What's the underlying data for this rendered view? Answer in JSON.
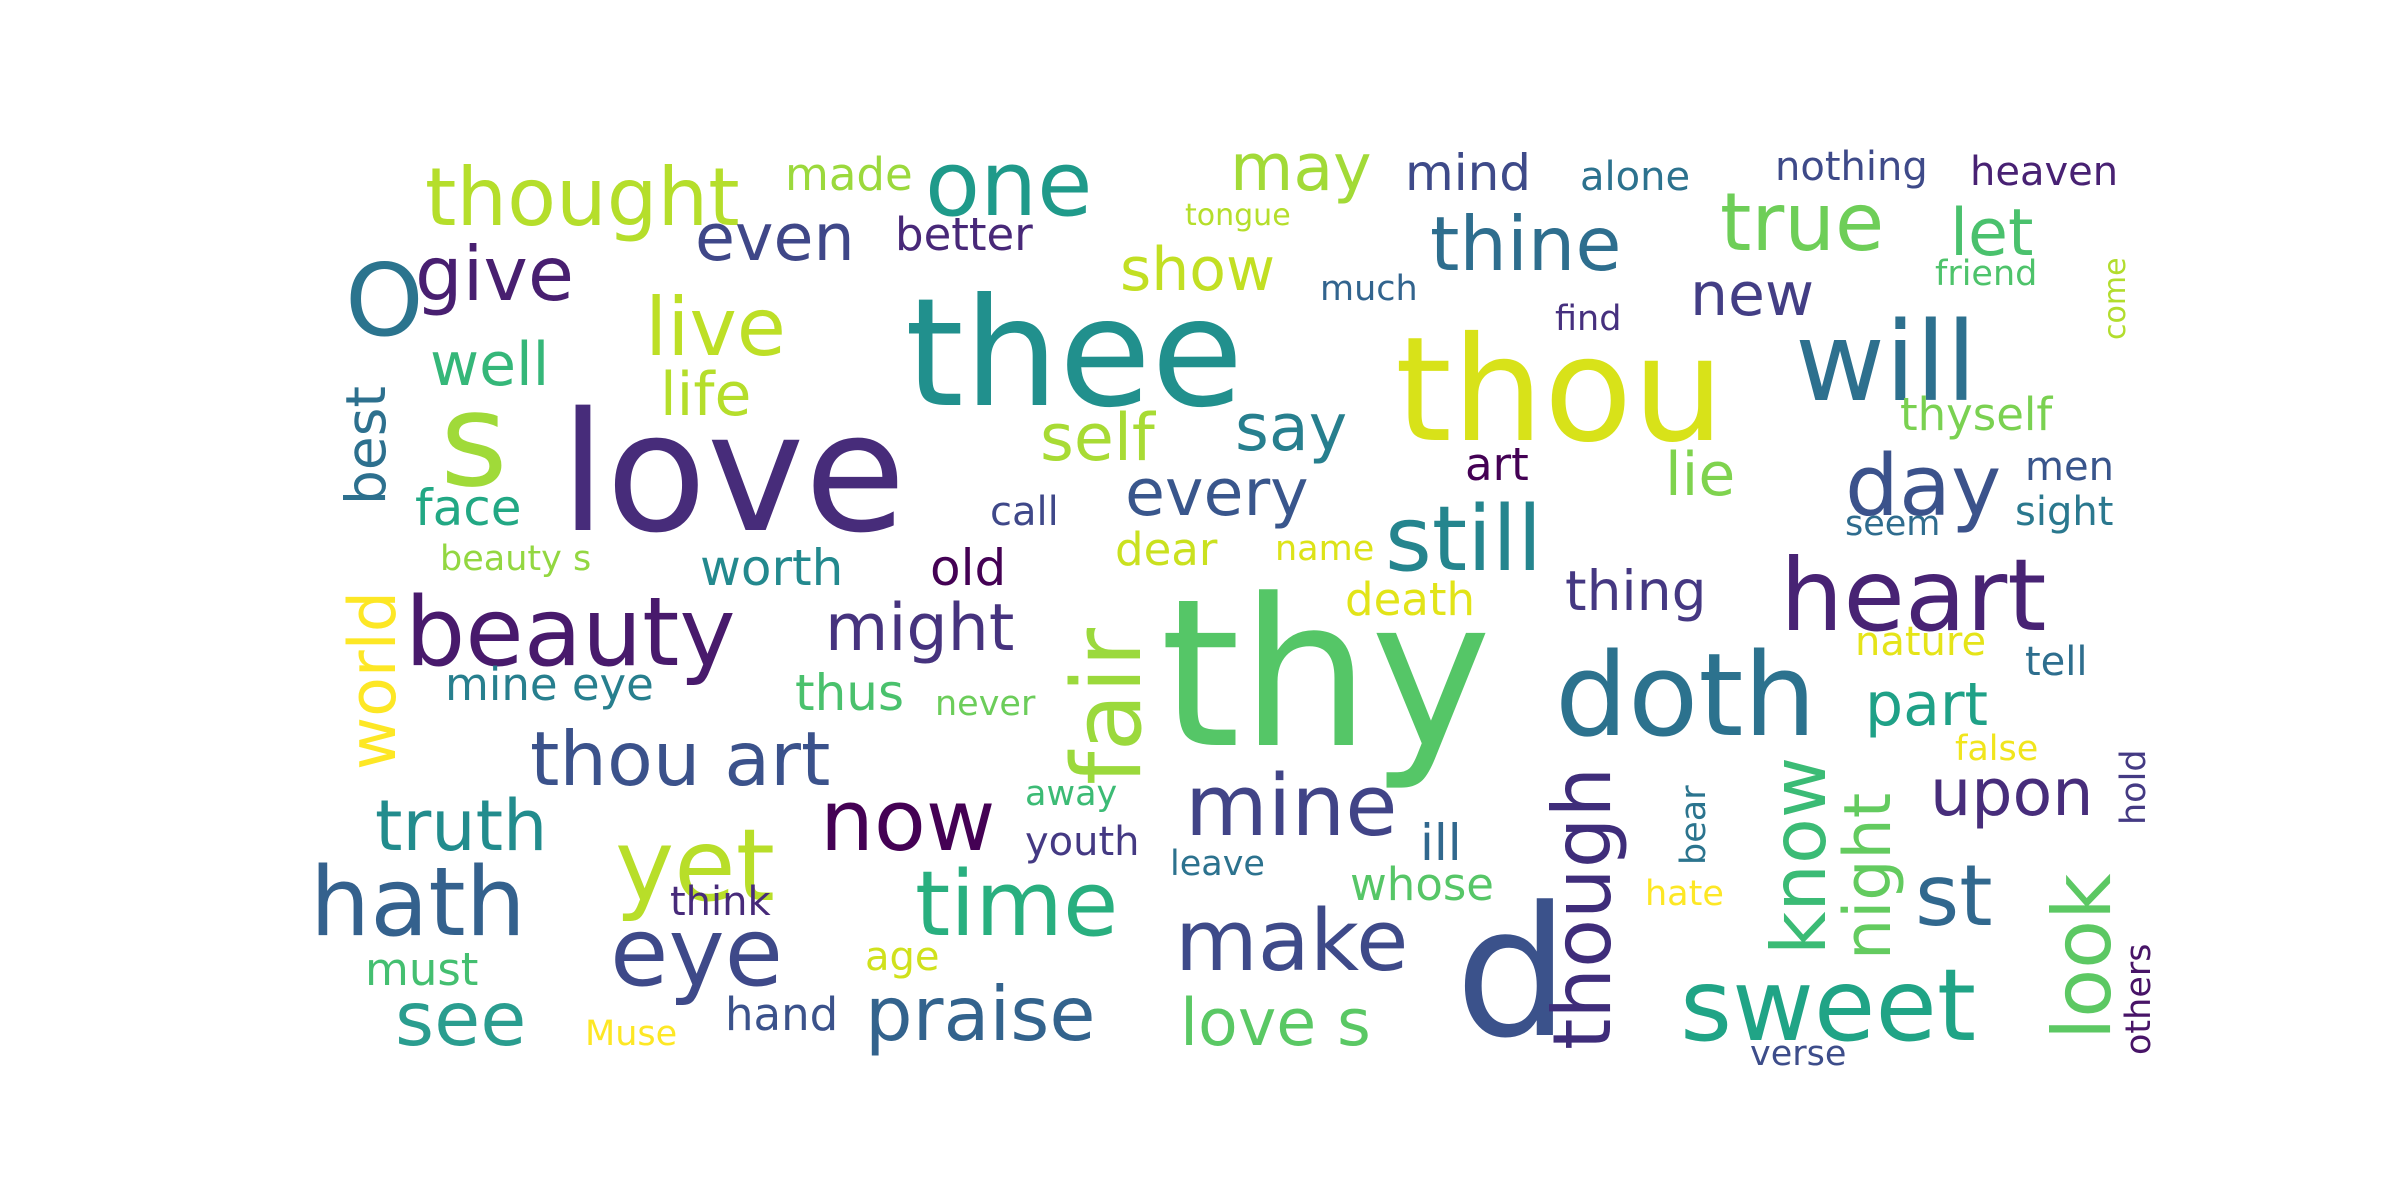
{
  "words": [
    {
      "text": "thy",
      "color": "#55c667"
    },
    {
      "text": "love",
      "color": "#472c7a"
    },
    {
      "text": "thee",
      "color": "#21908d"
    },
    {
      "text": "thou",
      "color": "#d8e219"
    },
    {
      "text": "d",
      "color": "#3b528b"
    },
    {
      "text": "will",
      "color": "#2d708e"
    },
    {
      "text": "s",
      "color": "#a0da39"
    },
    {
      "text": "doth",
      "color": "#2c728e"
    },
    {
      "text": "heart",
      "color": "#482374"
    },
    {
      "text": "beauty",
      "color": "#481a6c"
    },
    {
      "text": "sweet",
      "color": "#20a486"
    },
    {
      "text": "O",
      "color": "#2b748e"
    },
    {
      "text": "eye",
      "color": "#3e4989"
    },
    {
      "text": "time",
      "color": "#29af7f"
    },
    {
      "text": "yet",
      "color": "#b8de29"
    },
    {
      "text": "hath",
      "color": "#34618d"
    },
    {
      "text": "mine",
      "color": "#414487"
    },
    {
      "text": "now",
      "color": "#440154"
    },
    {
      "text": "make",
      "color": "#3e4a89"
    },
    {
      "text": "praise",
      "color": "#33638d"
    },
    {
      "text": "still",
      "color": "#25858e"
    },
    {
      "text": "day",
      "color": "#3b528b"
    },
    {
      "text": "one",
      "color": "#1f9a8a"
    },
    {
      "text": "thought",
      "color": "#b5de2b"
    },
    {
      "text": "thine",
      "color": "#2e6e8e"
    },
    {
      "text": "true",
      "color": "#6ece58"
    },
    {
      "text": "fair",
      "color": "#9bd93c"
    },
    {
      "text": "though",
      "color": "#3f2d7a"
    },
    {
      "text": "thou art",
      "color": "#3b528b"
    },
    {
      "text": "st",
      "color": "#31688e"
    },
    {
      "text": "look",
      "color": "#5cc863"
    },
    {
      "text": "give",
      "color": "#481f70"
    },
    {
      "text": "know",
      "color": "#3bbb75"
    },
    {
      "text": "see",
      "color": "#2a9d8f"
    },
    {
      "text": "might",
      "color": "#46337e"
    },
    {
      "text": "live",
      "color": "#bddf26"
    },
    {
      "text": "truth",
      "color": "#228c8d"
    },
    {
      "text": "night",
      "color": "#63cb5f"
    },
    {
      "text": "upon",
      "color": "#472d7b"
    },
    {
      "text": "every",
      "color": "#39568c"
    },
    {
      "text": "love s",
      "color": "#5ac864"
    },
    {
      "text": "self",
      "color": "#a8db34"
    },
    {
      "text": "say",
      "color": "#277f8e"
    },
    {
      "text": "may",
      "color": "#a2da37"
    },
    {
      "text": "part",
      "color": "#1fa187"
    },
    {
      "text": "let",
      "color": "#4ac16d"
    },
    {
      "text": "world",
      "color": "#fde725"
    },
    {
      "text": "even",
      "color": "#3f4788"
    },
    {
      "text": "well",
      "color": "#35b779"
    },
    {
      "text": "show",
      "color": "#c2df23"
    },
    {
      "text": "new",
      "color": "#433e85"
    },
    {
      "text": "life",
      "color": "#b5de2b"
    },
    {
      "text": "thing",
      "color": "#453882"
    },
    {
      "text": "best",
      "color": "#2d708e"
    },
    {
      "text": "lie",
      "color": "#7fd34e"
    },
    {
      "text": "mind",
      "color": "#3e4a89"
    },
    {
      "text": "worth",
      "color": "#23898e"
    },
    {
      "text": "death",
      "color": "#e2e418"
    },
    {
      "text": "better",
      "color": "#482878"
    },
    {
      "text": "mine eye",
      "color": "#277f8e"
    },
    {
      "text": "face",
      "color": "#22a884"
    },
    {
      "text": "thus",
      "color": "#4ac16d"
    },
    {
      "text": "old",
      "color": "#440154"
    },
    {
      "text": "hand",
      "color": "#3b528b"
    },
    {
      "text": "dear",
      "color": "#cae11f"
    },
    {
      "text": "must",
      "color": "#44bf70"
    },
    {
      "text": "ill",
      "color": "#31688e"
    },
    {
      "text": "made",
      "color": "#9bd93c"
    },
    {
      "text": "whose",
      "color": "#56c667"
    },
    {
      "text": "alone",
      "color": "#2c728e"
    },
    {
      "text": "art",
      "color": "#440154"
    },
    {
      "text": "heaven",
      "color": "#482173"
    },
    {
      "text": "thyself",
      "color": "#7ad151"
    },
    {
      "text": "nothing",
      "color": "#3e4a89"
    },
    {
      "text": "youth",
      "color": "#443983"
    },
    {
      "text": "men",
      "color": "#39558c"
    },
    {
      "text": "sight",
      "color": "#2a788e"
    },
    {
      "text": "think",
      "color": "#472a7a"
    },
    {
      "text": "age",
      "color": "#d0e11c"
    },
    {
      "text": "call",
      "color": "#3f4889"
    },
    {
      "text": "much",
      "color": "#32648e"
    },
    {
      "text": "nature",
      "color": "#e5e419"
    },
    {
      "text": "away",
      "color": "#3cbb75"
    },
    {
      "text": "tell",
      "color": "#2e6e8e"
    },
    {
      "text": "hate",
      "color": "#fde725"
    },
    {
      "text": "false",
      "color": "#f1e51d"
    },
    {
      "text": "beauty s",
      "color": "#93d741"
    },
    {
      "text": "find",
      "color": "#46307e"
    },
    {
      "text": "friend",
      "color": "#4ec36b"
    },
    {
      "text": "never",
      "color": "#6ccd5a"
    },
    {
      "text": "leave",
      "color": "#2c728e"
    },
    {
      "text": "seem",
      "color": "#2f6c8e"
    },
    {
      "text": "name",
      "color": "#dde318"
    },
    {
      "text": "bear",
      "color": "#2b748e"
    },
    {
      "text": "hold",
      "color": "#443a83"
    },
    {
      "text": "others",
      "color": "#481467"
    },
    {
      "text": "verse",
      "color": "#3d4d8a"
    },
    {
      "text": "Muse",
      "color": "#fde725"
    },
    {
      "text": "come",
      "color": "#b2dd2d"
    },
    {
      "text": "tongue",
      "color": "#b5de2b"
    }
  ]
}
